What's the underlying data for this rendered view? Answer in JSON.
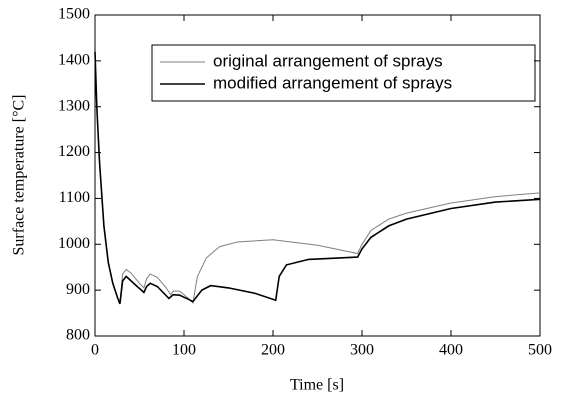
{
  "chart_data": {
    "type": "line",
    "xlabel": "Time [s]",
    "ylabel": "Surface temperature [°C]",
    "xlim": [
      0,
      500
    ],
    "xticks": [
      0,
      100,
      200,
      300,
      400,
      500
    ],
    "ylim": [
      800,
      1500
    ],
    "yticks": [
      800,
      900,
      1000,
      1100,
      1200,
      1300,
      1400,
      1500
    ],
    "legend": "upper right",
    "series": [
      {
        "name": "original arrangement of sprays",
        "color": "#808080",
        "x": [
          0,
          2,
          5,
          10,
          15,
          20,
          25,
          28,
          31,
          35,
          40,
          50,
          55,
          58,
          62,
          70,
          80,
          85,
          88,
          95,
          105,
          110,
          115,
          125,
          140,
          160,
          200,
          250,
          295,
          300,
          310,
          330,
          350,
          400,
          450,
          500
        ],
        "values": [
          1420,
          1300,
          1180,
          1040,
          960,
          915,
          885,
          870,
          935,
          945,
          938,
          915,
          905,
          925,
          935,
          928,
          905,
          890,
          898,
          898,
          882,
          872,
          930,
          970,
          995,
          1005,
          1010,
          998,
          980,
          1000,
          1030,
          1055,
          1068,
          1090,
          1104,
          1112
        ]
      },
      {
        "name": "modified arrangement of sprays",
        "color": "#000000",
        "x": [
          0,
          2,
          5,
          10,
          15,
          20,
          25,
          28,
          31,
          35,
          45,
          55,
          58,
          62,
          70,
          83,
          88,
          95,
          105,
          110,
          120,
          130,
          150,
          180,
          203,
          207,
          215,
          240,
          295,
          300,
          310,
          330,
          350,
          400,
          450,
          500
        ],
        "values": [
          1420,
          1300,
          1180,
          1040,
          960,
          915,
          885,
          870,
          920,
          930,
          912,
          895,
          908,
          915,
          908,
          882,
          890,
          889,
          880,
          875,
          900,
          910,
          905,
          893,
          878,
          930,
          955,
          967,
          972,
          990,
          1015,
          1040,
          1055,
          1078,
          1092,
          1098
        ]
      }
    ]
  }
}
